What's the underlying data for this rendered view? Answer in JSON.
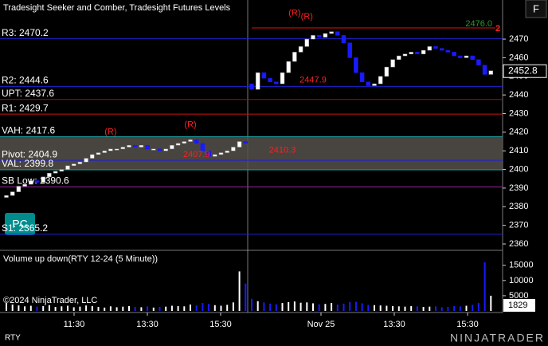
{
  "window": {
    "title": "Tradesight Seeker and Comber, Tradesight Futures Levels",
    "instrument": "RTY",
    "brand": "NINJATRADER",
    "badge": "PC",
    "button": "F"
  },
  "price_panel": {
    "ylim": [
      2357,
      2491
    ],
    "yticks": [
      2360,
      2370,
      2380,
      2390,
      2400,
      2410,
      2420,
      2430,
      2440,
      2450,
      2460,
      2470
    ],
    "current_price": {
      "value": 2452.8,
      "label": "2452.8"
    },
    "value_area": [
      2399.8,
      2417.6
    ],
    "levels": [
      {
        "label": "R3: 2470.2",
        "value": 2470.2,
        "color": "#2020d0"
      },
      {
        "label": "R2: 2444.6",
        "value": 2444.6,
        "color": "#2020d0"
      },
      {
        "label": "UPT: 2437.6",
        "value": 2437.6,
        "color": "#a01010"
      },
      {
        "label": "R1: 2429.7",
        "value": 2429.7,
        "color": "#d01010"
      },
      {
        "label": "VAH: 2417.6",
        "value": 2417.6,
        "color": "#20a0a0"
      },
      {
        "label": "Pivot: 2404.9",
        "value": 2404.9,
        "color": "#2020d0"
      },
      {
        "label": "VAL: 2399.8",
        "value": 2399.8,
        "color": "#20a0a0"
      },
      {
        "label": "SB Low: 2390.6",
        "value": 2390.6,
        "color": "#a020a0"
      },
      {
        "label": "S1: 2365.2",
        "value": 2365.2,
        "color": "#2020d0"
      }
    ],
    "target": {
      "label": "2476.0",
      "value": 2476.0,
      "tag": "2"
    },
    "annotations": [
      {
        "text": "(R)",
        "value": 2420,
        "session": 0,
        "bar": 17
      },
      {
        "text": "(R)",
        "value": 2424,
        "session": 0,
        "bar": 30
      },
      {
        "text": "(R)",
        "value": 2484,
        "session": 1,
        "bar": 7
      },
      {
        "text": "(R)",
        "value": 2482,
        "session": 1,
        "bar": 9
      },
      {
        "text": "2407.9",
        "value": 2407.9,
        "session": 0,
        "bar": 31
      },
      {
        "text": "2410.3",
        "value": 2410.3,
        "session": 1,
        "bar": 5
      },
      {
        "text": "2447.9",
        "value": 2447.9,
        "session": 1,
        "bar": 10
      }
    ],
    "sessions": [
      {
        "open": 2385,
        "closes": [
          2386,
          2388,
          2391,
          2392,
          2394,
          2393,
          2396,
          2398,
          2399,
          2400,
          2402,
          2403,
          2404,
          2406,
          2408,
          2409,
          2410,
          2411,
          2411,
          2412,
          2413,
          2412,
          2413,
          2411,
          2411,
          2410,
          2411,
          2413,
          2414,
          2415,
          2416,
          2414,
          2410,
          2407,
          2408,
          2409,
          2410,
          2412,
          2415,
          2414
        ]
      },
      {
        "open": 2446,
        "closes": [
          2443,
          2452,
          2449,
          2447,
          2446,
          2452,
          2458,
          2463,
          2466,
          2470,
          2472,
          2471,
          2473,
          2474,
          2472,
          2468,
          2460,
          2452,
          2447,
          2445,
          2446,
          2450,
          2455,
          2459,
          2461,
          2462,
          2463,
          2462,
          2464,
          2466,
          2465,
          2464,
          2463,
          2461,
          2460,
          2461,
          2459,
          2456,
          2451,
          2453
        ]
      }
    ]
  },
  "volume_panel": {
    "title": "Volume up down(RTY 12-24 (5 Minute))",
    "copyright": "©2024 NinjaTrader, LLC",
    "ylim": [
      0,
      19400
    ],
    "yticks": [
      {
        "value": 5000,
        "label": "5000"
      },
      {
        "value": 10000,
        "label": "10000"
      },
      {
        "value": 15000,
        "label": "15000"
      }
    ],
    "current": {
      "value": 1829,
      "label": "1829"
    },
    "sessions": [
      [
        2600,
        2100,
        1800,
        1500,
        1700,
        1400,
        1600,
        1900,
        1300,
        1500,
        1700,
        1200,
        1400,
        1800,
        1600,
        1300,
        1100,
        1500,
        1200,
        1400,
        1600,
        1300,
        1200,
        1500,
        1100,
        1300,
        1400,
        1700,
        1600,
        1500,
        2100,
        1800,
        2600,
        2300,
        1900,
        1700,
        2000,
        2800,
        13000,
        9000
      ],
      [
        4000,
        3200,
        2800,
        2400,
        2200,
        2600,
        2900,
        3100,
        2700,
        2800,
        2500,
        2200,
        2300,
        2600,
        2100,
        2400,
        2900,
        3000,
        2500,
        2000,
        1900,
        1800,
        1700,
        1600,
        1500,
        1400,
        1600,
        1500,
        1300,
        1400,
        1500,
        1200,
        1300,
        1600,
        1500,
        1700,
        2000,
        2600,
        16000,
        5000
      ]
    ]
  },
  "x_axis": {
    "labels": [
      "11:30",
      "13:30",
      "15:30",
      "Nov 25",
      "13:30",
      "15:30"
    ]
  }
}
